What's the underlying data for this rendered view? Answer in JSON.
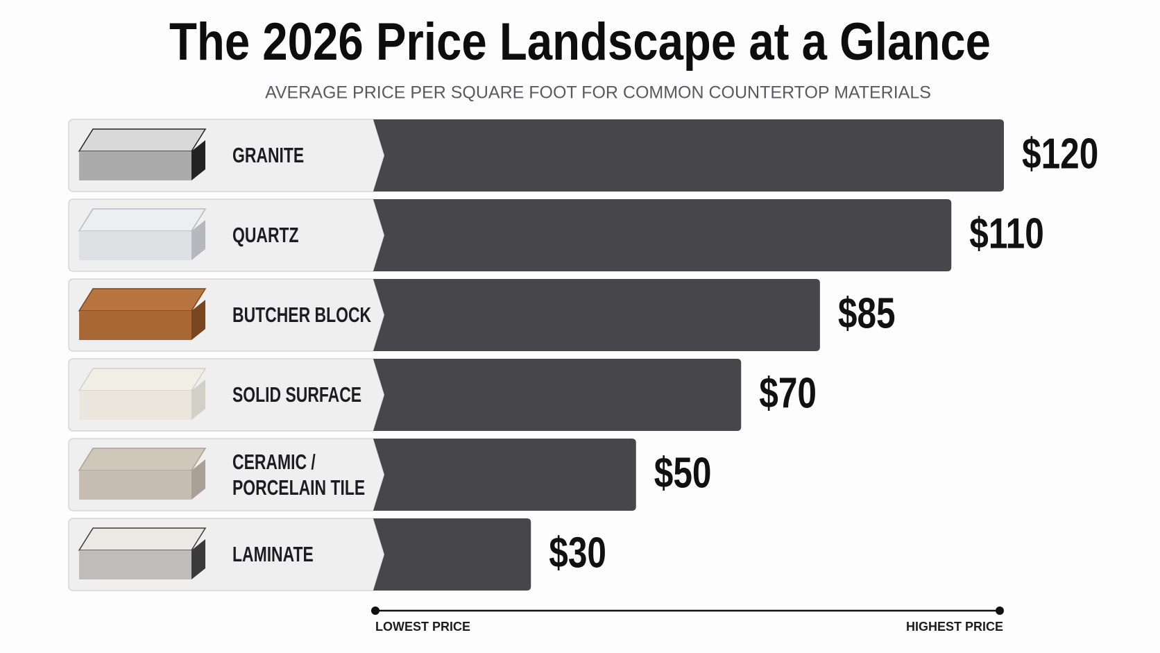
{
  "chart_data": {
    "type": "bar",
    "title": "The 2026 Price Landscape at a Glance",
    "subtitle": "AVERAGE PRICE PER SQUARE FOOT FOR COMMON COUNTERTOP MATERIALS",
    "categories": [
      "GRANITE",
      "QUARTZ",
      "BUTCHER BLOCK",
      "SOLID SURFACE",
      "CERAMIC / PORCELAIN TILE",
      "LAMINATE"
    ],
    "values": [
      120,
      110,
      85,
      70,
      50,
      30
    ],
    "value_labels": [
      "$120",
      "$110",
      "$85",
      "$70",
      "$50",
      "$30"
    ],
    "color": "#47474b",
    "axis_labels": {
      "low": "LOWEST PRICE",
      "high": "HIGHEST PRICE"
    }
  }
}
